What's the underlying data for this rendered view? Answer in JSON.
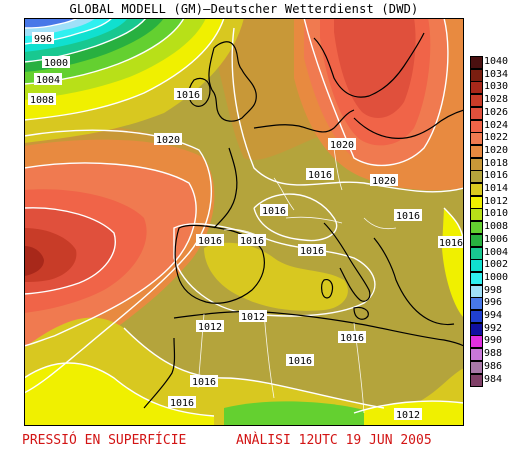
{
  "title": "GLOBAL MODELL (GM)–Deutscher Wetterdienst (DWD)",
  "caption": {
    "left": "PRESSIÓ EN SUPERFÍCIE",
    "right": "ANÀLISI 12UTC 19 JUN 2005"
  },
  "legend": [
    {
      "label": "1040",
      "color": "#4a1010"
    },
    {
      "label": "1034",
      "color": "#7a1e10"
    },
    {
      "label": "1030",
      "color": "#a8281a"
    },
    {
      "label": "1028",
      "color": "#c83c28"
    },
    {
      "label": "1026",
      "color": "#e0503c"
    },
    {
      "label": "1024",
      "color": "#f06448"
    },
    {
      "label": "1022",
      "color": "#f07a50"
    },
    {
      "label": "1020",
      "color": "#e88a40"
    },
    {
      "label": "1018",
      "color": "#c89838"
    },
    {
      "label": "1016",
      "color": "#b4a43c"
    },
    {
      "label": "1014",
      "color": "#d8c820"
    },
    {
      "label": "1012",
      "color": "#f0f000"
    },
    {
      "label": "1010",
      "color": "#b8e018"
    },
    {
      "label": "1008",
      "color": "#64d030"
    },
    {
      "label": "1006",
      "color": "#28b040"
    },
    {
      "label": "1004",
      "color": "#18c890"
    },
    {
      "label": "1002",
      "color": "#10e0d0"
    },
    {
      "label": "1000",
      "color": "#30f0f0"
    },
    {
      "label": "998",
      "color": "#a0e0f8"
    },
    {
      "label": "996",
      "color": "#4878e8"
    },
    {
      "label": "994",
      "color": "#2040d0"
    },
    {
      "label": "992",
      "color": "#1010a0"
    },
    {
      "label": "990",
      "color": "#e030e0"
    },
    {
      "label": "988",
      "color": "#c878d8"
    },
    {
      "label": "986",
      "color": "#a878a8"
    },
    {
      "label": "984",
      "color": "#804068"
    }
  ],
  "isobar_labels": [
    {
      "text": "996"
    },
    {
      "text": "1000"
    },
    {
      "text": "1004"
    },
    {
      "text": "1008"
    },
    {
      "text": "1016"
    },
    {
      "text": "1020"
    },
    {
      "text": "1020"
    },
    {
      "text": "1016"
    },
    {
      "text": "1020"
    },
    {
      "text": "1016"
    },
    {
      "text": "1016"
    },
    {
      "text": "1016"
    },
    {
      "text": "1016"
    },
    {
      "text": "1016"
    },
    {
      "text": "1016"
    },
    {
      "text": "1012"
    },
    {
      "text": "1012"
    },
    {
      "text": "1016"
    },
    {
      "text": "1016"
    },
    {
      "text": "1016"
    },
    {
      "text": "1016"
    },
    {
      "text": "1012"
    },
    {
      "text": "1012"
    }
  ]
}
